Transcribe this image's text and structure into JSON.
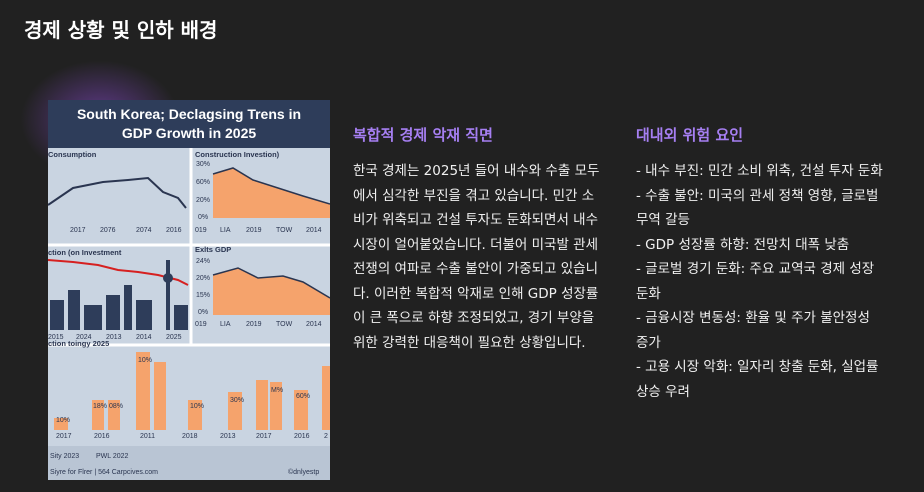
{
  "title": "경제 상황 및 인하 배경",
  "image": {
    "title": [
      "South Korea; Declagsing Trens in",
      "GDP Growth in 2025"
    ],
    "panels": [
      {
        "title": "Consumption",
        "labels": [
          "2017",
          "2076",
          "2074",
          "2016"
        ]
      },
      {
        "title": "Construction Investion)",
        "labels": [
          "30%",
          "60%",
          "20%",
          "0%",
          "019",
          "LIA",
          "2019",
          "TOW",
          "2014"
        ]
      },
      {
        "title": "ction (on Investment",
        "labels": [
          "2015",
          "2024",
          "2013",
          "2014",
          "2025"
        ]
      },
      {
        "title": "Exlts GDP",
        "labels": [
          "24%",
          "20%",
          "15%",
          "0%",
          "019",
          "LIA",
          "2019",
          "TOW",
          "2014"
        ]
      },
      {
        "title": "ction toingy 2025",
        "labels": [
          "2017",
          "2016",
          "2011",
          "2018",
          "2013",
          "2017",
          "2016",
          "2"
        ],
        "bar_labels": [
          "10%",
          "10%",
          "18%",
          "08%",
          "10%",
          "30%",
          "M%",
          "60%"
        ]
      }
    ],
    "footer": [
      "Sity 2023",
      "PWL 2022",
      "Siyre for Flrer | 564 Carpcives.com",
      "©dnlyestp"
    ]
  },
  "columns": [
    {
      "heading": "복합적 경제 악재 직면",
      "body": "한국 경제는 2025년 들어 내수와 수출 모두에서 심각한 부진을 겪고 있습니다. 민간 소비가 위축되고 건설 투자도 둔화되면서 내수 시장이 얼어붙었습니다. 더불어 미국발 관세 전쟁의 여파로 수출 불안이 가중되고 있습니다. 이러한 복합적 악재로 인해 GDP 성장률이 큰 폭으로 하향 조정되었고, 경기 부양을 위한 강력한 대응책이 필요한 상황입니다."
    },
    {
      "heading": "대내외 위험 요인",
      "items": [
        "- 내수 부진: 민간 소비 위축, 건설 투자 둔화",
        "- 수출 불안: 미국의 관세 정책 영향, 글로벌 무역 갈등",
        "- GDP 성장률 하향: 전망치 대폭 낮춤",
        "- 글로벌 경기 둔화: 주요 교역국 경제 성장 둔화",
        "- 금융시장 변동성: 환율 및 주가 불안정성 증가",
        "- 고용 시장 악화: 일자리 창출 둔화, 실업률 상승 우려"
      ]
    }
  ]
}
